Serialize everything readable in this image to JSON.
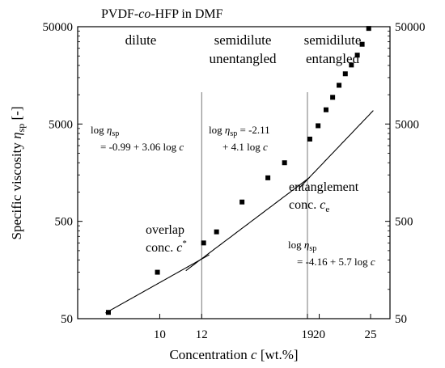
{
  "chart_data": {
    "type": "scatter",
    "title": "PVDF-co-HFP in DMF",
    "title_parts": {
      "pre": "PVDF-",
      "ital": "co",
      "post": "-HFP in DMF"
    },
    "xlabel": "Concentration c [wt.%]",
    "xlabel_parts": {
      "pre": "Concentration ",
      "ital": "c",
      "post": " [wt.%]"
    },
    "ylabel": "Specific viscosity ηsp [-]",
    "ylabel_parts": {
      "pre": "Specific viscosity ",
      "ital": "η",
      "sub": "sp",
      "post": " [-]"
    },
    "x_scale": "log",
    "y_scale": "log",
    "xlim": [
      7,
      27.2
    ],
    "ylim": [
      50,
      50000
    ],
    "x_ticks": [
      10,
      12,
      19,
      20,
      25
    ],
    "x_tick_labels": [
      "10",
      "12",
      "19",
      "20",
      "25"
    ],
    "y_ticks": [
      50,
      500,
      5000,
      50000
    ],
    "y_tick_labels": [
      "50",
      "500",
      "5000",
      "50000"
    ],
    "y_ticks_mirrored_right": true,
    "grid": false,
    "series": [
      {
        "x": [
          8.0,
          9.9,
          12.1,
          12.8,
          14.3,
          16.0,
          17.2,
          19.2,
          19.9,
          20.6,
          21.2,
          21.8,
          22.4,
          23.0,
          23.6,
          24.1,
          24.8
        ],
        "y": [
          58,
          150,
          300,
          390,
          790,
          1400,
          2000,
          3500,
          4800,
          7000,
          9400,
          12500,
          16400,
          20200,
          25500,
          33000,
          48000
        ]
      }
    ],
    "fits": [
      {
        "intercept": -0.99,
        "slope": 3.06,
        "x_range": [
          7.9,
          12.4
        ]
      },
      {
        "intercept": -2.11,
        "slope": 4.1,
        "x_range": [
          11.2,
          19.2
        ]
      },
      {
        "intercept": -4.16,
        "slope": 5.7,
        "x_range": [
          18.3,
          25.3
        ]
      }
    ],
    "vlines": [
      12,
      19
    ],
    "regions": [
      {
        "lines": [
          "dilute"
        ]
      },
      {
        "lines": [
          "semidilute",
          "unentangled"
        ]
      },
      {
        "lines": [
          "semidilute",
          "entangled"
        ]
      }
    ],
    "equations": [
      {
        "line1": "log ηsp",
        "line2": "= -0.99 + 3.06 log c"
      },
      {
        "line1": "log ηsp = -2.11",
        "line2": "+ 4.1 log c"
      },
      {
        "line1": "log ηsp",
        "line2": "= -4.16 + 5.7 log c"
      }
    ],
    "eq_parts": [
      {
        "l1": {
          "pre": "log ",
          "ital": "η",
          "sub": "sp",
          "post": ""
        },
        "l2": {
          "pre": "= -0.99 + 3.06 log ",
          "ital": "c"
        }
      },
      {
        "l1": {
          "pre": "log ",
          "ital": "η",
          "sub": "sp",
          "post": " = -2.11"
        },
        "l2": {
          "pre": "+ 4.1 log ",
          "ital": "c"
        }
      },
      {
        "l1": {
          "pre": "log ",
          "ital": "η",
          "sub": "sp",
          "post": ""
        },
        "l2": {
          "pre": "= -4.16 + 5.7 log ",
          "ital": "c"
        }
      }
    ],
    "annotations": [
      {
        "text": "overlap conc. c*",
        "line1": "overlap",
        "line2_pre": "conc. ",
        "ital": "c",
        "sup": "*"
      },
      {
        "text": "entanglement conc. ce",
        "line1": "entanglement",
        "line2_pre": "conc. ",
        "ital": "c",
        "sub": "e"
      }
    ]
  }
}
